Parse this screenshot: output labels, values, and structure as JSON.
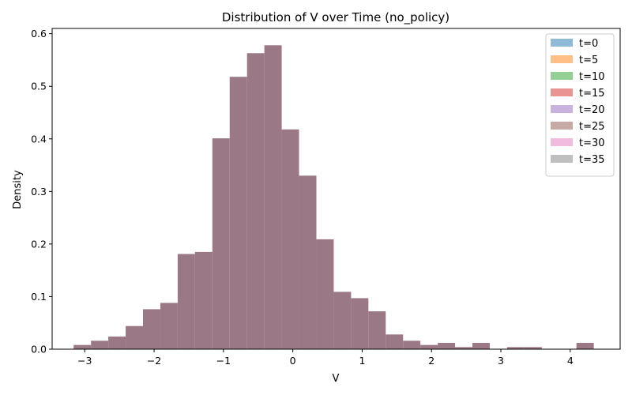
{
  "chart_data": {
    "type": "bar",
    "title": "Distribution of V over Time (no_policy)",
    "xlabel": "V",
    "ylabel": "Density",
    "xlim": [
      -3.47,
      4.72
    ],
    "ylim": [
      0,
      0.61
    ],
    "xticks": [
      -3,
      -2,
      -1,
      0,
      1,
      2,
      3,
      4
    ],
    "xtick_labels": [
      "−3",
      "−2",
      "−1",
      "0",
      "1",
      "2",
      "3",
      "4"
    ],
    "yticks": [
      0.0,
      0.1,
      0.2,
      0.3,
      0.4,
      0.5,
      0.6
    ],
    "ytick_labels": [
      "0.0",
      "0.1",
      "0.2",
      "0.3",
      "0.4",
      "0.5",
      "0.6"
    ],
    "grid": false,
    "legend_position": "top-right",
    "bin_edges": [
      -3.16,
      -2.91,
      -2.66,
      -2.41,
      -2.16,
      -1.91,
      -1.66,
      -1.41,
      -1.16,
      -0.91,
      -0.66,
      -0.41,
      -0.16,
      0.09,
      0.34,
      0.59,
      0.84,
      1.09,
      1.34,
      1.59,
      1.84,
      2.09,
      2.34,
      2.59,
      2.84,
      3.09,
      3.34,
      3.59,
      3.84,
      4.09,
      4.34
    ],
    "series": [
      {
        "name": "t=0",
        "color": "#1f77b4"
      },
      {
        "name": "t=5",
        "color": "#ff7f0e"
      },
      {
        "name": "t=10",
        "color": "#2ca02c"
      },
      {
        "name": "t=15",
        "color": "#d62728"
      },
      {
        "name": "t=20",
        "color": "#9467bd"
      },
      {
        "name": "t=25",
        "color": "#8c564b"
      },
      {
        "name": "t=30",
        "color": "#e377c2"
      },
      {
        "name": "t=35",
        "color": "#7f7f7f"
      }
    ],
    "values": [
      0.008,
      0.016,
      0.024,
      0.044,
      0.076,
      0.088,
      0.181,
      0.185,
      0.401,
      0.518,
      0.563,
      0.578,
      0.418,
      0.33,
      0.209,
      0.109,
      0.097,
      0.072,
      0.028,
      0.016,
      0.008,
      0.012,
      0.004,
      0.012,
      0.0,
      0.004,
      0.004,
      0.0,
      0.0,
      0.012
    ],
    "bar_color": "#9b7885",
    "legend_alpha": 0.5
  }
}
